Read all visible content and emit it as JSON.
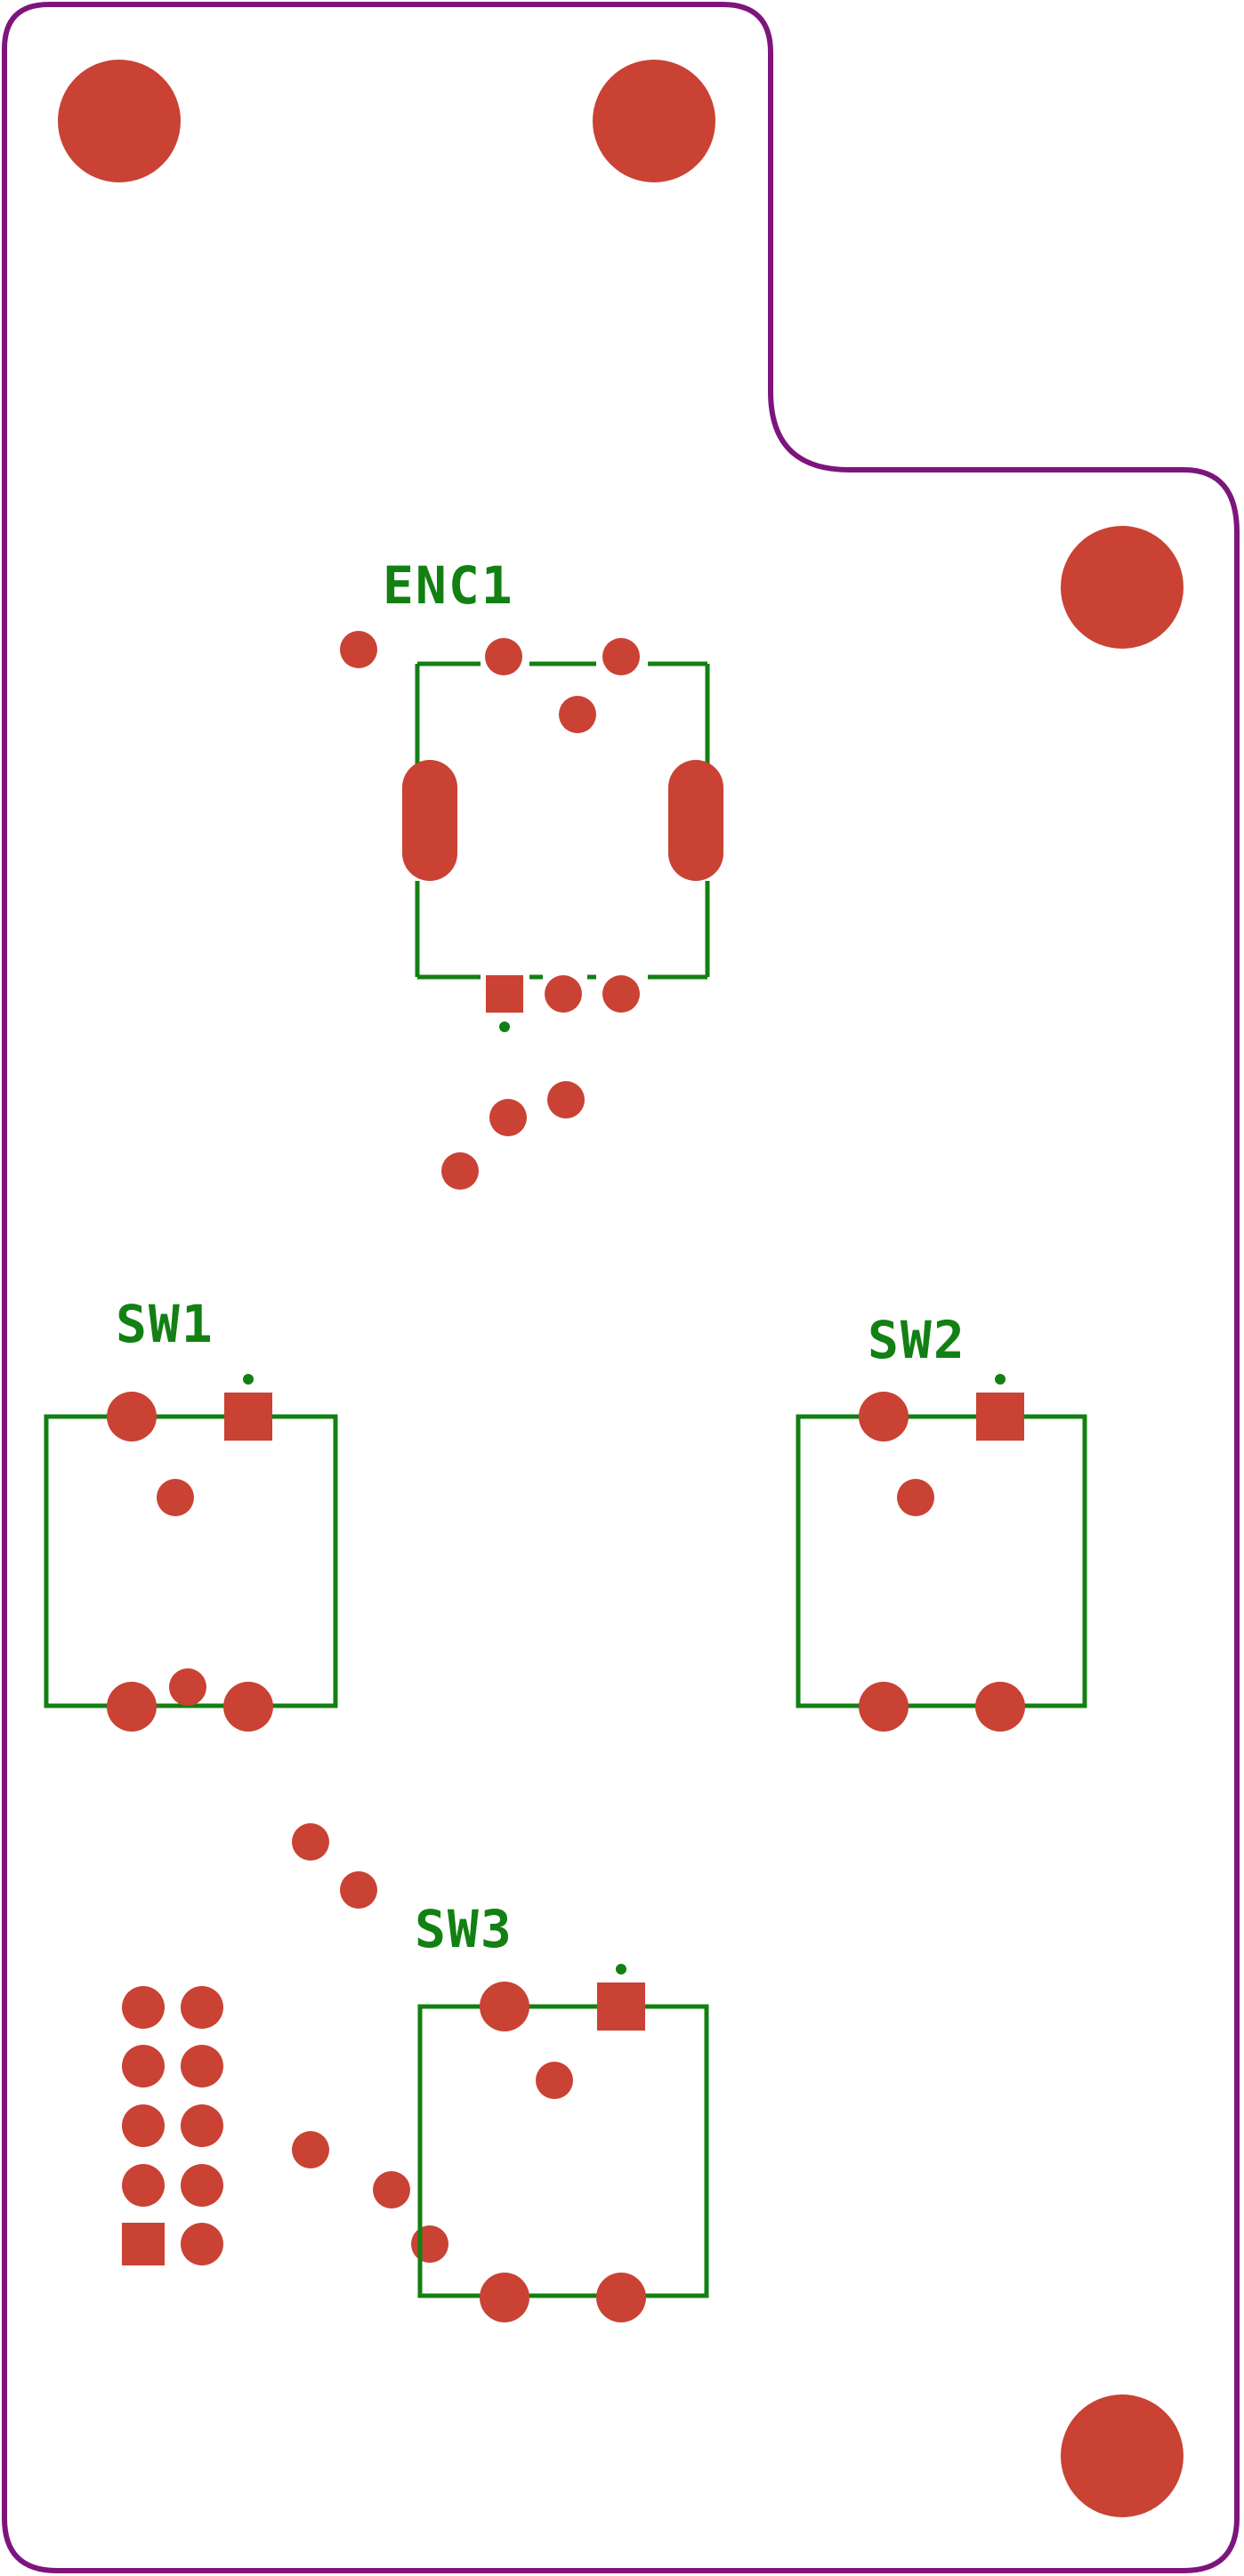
{
  "colors": {
    "board_outline": "#7d157d",
    "copper": "#c94234",
    "silkscreen": "#128012",
    "background": "#ffffff"
  },
  "designators": {
    "enc1": "ENC1",
    "sw1": "SW1",
    "sw2": "SW2",
    "sw3": "SW3"
  },
  "components": [
    {
      "ref": "ENC1",
      "type": "rotary-encoder"
    },
    {
      "ref": "SW1",
      "type": "tactile-switch"
    },
    {
      "ref": "SW2",
      "type": "tactile-switch"
    },
    {
      "ref": "SW3",
      "type": "tactile-switch"
    },
    {
      "ref": "",
      "type": "pin-header-2x5"
    }
  ]
}
